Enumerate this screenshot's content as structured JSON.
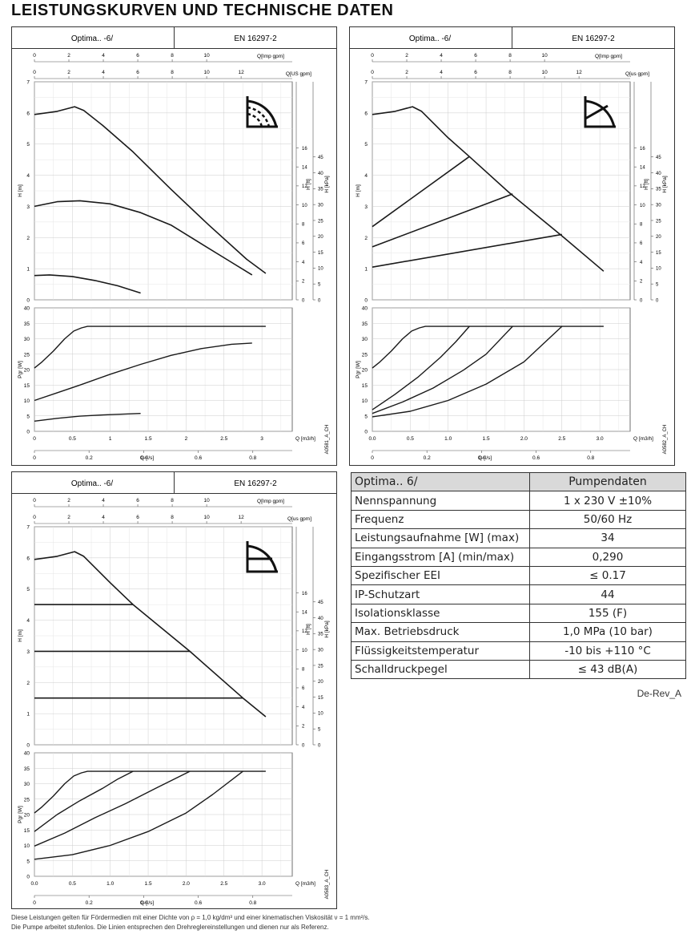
{
  "page_title": "LEISTUNGSKURVEN UND TECHNISCHE DATEN",
  "colors": {
    "curve": "#1a1a1a",
    "grid": "#cccccc",
    "frame": "#333333",
    "table_header_bg": "#d9d9d9"
  },
  "chart_data": [
    {
      "type": "line",
      "pump_name": "Optima.. -6/",
      "standard": "EN 16297-2",
      "drawing_id": "A0581_A_CH",
      "icon": "constant-curve-mode-icon",
      "upper_plot": {
        "top_axis_labels": [
          "Q[Imp gpm]",
          "Q[US gpm]"
        ],
        "ylabel": "H [m]",
        "right_ylabels": [
          "H [ft]",
          "H [kPa]"
        ],
        "ylim": [
          0,
          7
        ],
        "yticks": [
          0,
          1,
          2,
          3,
          4,
          5,
          6,
          7
        ],
        "series": [
          {
            "x": [
              0,
              0.3,
              0.53,
              0.65,
              0.9,
              1.3,
              1.8,
              2.3,
              2.8,
              3.05
            ],
            "y": [
              5.95,
              6.05,
              6.2,
              6.08,
              5.6,
              4.75,
              3.55,
              2.4,
              1.3,
              0.85
            ]
          },
          {
            "x": [
              0,
              0.3,
              0.6,
              1.0,
              1.4,
              1.8,
              2.2,
              2.5,
              2.87
            ],
            "y": [
              3.0,
              3.15,
              3.18,
              3.08,
              2.8,
              2.4,
              1.8,
              1.35,
              0.8
            ]
          },
          {
            "x": [
              0,
              0.2,
              0.5,
              0.8,
              1.1,
              1.4
            ],
            "y": [
              0.78,
              0.8,
              0.75,
              0.62,
              0.45,
              0.22
            ]
          }
        ]
      },
      "lower_plot": {
        "ylabel": "Pgr [W]",
        "xlabel": "Q [m3/h]",
        "xlabel2": "Q [l/s]",
        "ylim": [
          0,
          40
        ],
        "yticks": [
          0,
          5,
          10,
          15,
          20,
          25,
          30,
          35,
          40
        ],
        "xlim": [
          0,
          3.4
        ],
        "xticks": [
          0,
          0.5,
          1,
          1.5,
          2,
          2.5,
          3
        ],
        "xticks_labels": [
          "0",
          "0.5",
          "1",
          "1.5",
          "2",
          "2.5",
          "3"
        ],
        "ls_ticks": [
          "0",
          "0.2",
          "0.4",
          "0.6",
          "0.8"
        ],
        "series": [
          {
            "x": [
              0,
              0.1,
              0.25,
              0.4,
              0.52,
              0.62,
              0.7,
              3.05
            ],
            "y": [
              20.5,
              22.5,
              26,
              30,
              32.5,
              33.5,
              34,
              34
            ]
          },
          {
            "x": [
              0,
              0.3,
              0.6,
              1.0,
              1.4,
              1.8,
              2.2,
              2.6,
              2.87
            ],
            "y": [
              10,
              12.5,
              15,
              18.5,
              21.7,
              24.6,
              26.8,
              28.2,
              28.6
            ]
          },
          {
            "x": [
              0,
              0.3,
              0.6,
              0.9,
              1.2,
              1.4
            ],
            "y": [
              3.3,
              4.2,
              4.9,
              5.3,
              5.6,
              5.8
            ]
          }
        ]
      }
    },
    {
      "type": "line",
      "pump_name": "Optima.. -6/",
      "standard": "EN 16297-2",
      "drawing_id": "A0582_A_CH",
      "icon": "proportional-pressure-mode-icon",
      "upper_plot": {
        "top_axis_labels": [
          "Q[Imp gpm]",
          "Q[us gpm]"
        ],
        "ylabel": "H [m]",
        "right_ylabels": [
          "H [ft]",
          "H [kPa]"
        ],
        "ylim": [
          0,
          7
        ],
        "yticks": [
          0,
          1,
          2,
          3,
          4,
          5,
          6,
          7
        ],
        "series": [
          {
            "x": [
              0,
              0.3,
              0.53,
              0.65,
              1.0,
              1.28,
              1.8,
              2.5,
              3.05
            ],
            "y": [
              5.95,
              6.05,
              6.2,
              6.05,
              5.2,
              4.6,
              3.45,
              2.05,
              0.92
            ]
          },
          {
            "x": [
              0,
              1.28
            ],
            "y": [
              2.35,
              4.6
            ]
          },
          {
            "x": [
              0,
              1.85
            ],
            "y": [
              1.7,
              3.4
            ]
          },
          {
            "x": [
              0,
              2.5
            ],
            "y": [
              1.05,
              2.1
            ]
          }
        ]
      },
      "lower_plot": {
        "ylabel": "Pgr [W]",
        "xlabel": "Q [m3/h]",
        "xlabel2": "Q [l/s]",
        "ylim": [
          0,
          40
        ],
        "yticks": [
          0,
          5,
          10,
          15,
          20,
          25,
          30,
          35,
          40
        ],
        "xlim": [
          0,
          3.4
        ],
        "xticks": [
          0,
          0.5,
          1,
          1.5,
          2,
          2.5,
          3
        ],
        "xticks_labels": [
          "0.0",
          "0.5",
          "1.0",
          "1.5",
          "2.0",
          "2.5",
          "3.0"
        ],
        "ls_ticks": [
          "0",
          "0.2",
          "0.4",
          "0.6",
          "0.8"
        ],
        "series": [
          {
            "x": [
              0,
              0.1,
              0.25,
              0.4,
              0.52,
              0.62,
              0.7,
              3.05
            ],
            "y": [
              20.5,
              22.5,
              26,
              30,
              32.5,
              33.5,
              34,
              34
            ]
          },
          {
            "x": [
              0,
              0.3,
              0.6,
              0.9,
              1.1,
              1.28
            ],
            "y": [
              7,
              12,
              17.5,
              24,
              29,
              34
            ]
          },
          {
            "x": [
              0,
              0.4,
              0.8,
              1.2,
              1.5,
              1.85
            ],
            "y": [
              5.8,
              9.5,
              14,
              19.8,
              25,
              34
            ]
          },
          {
            "x": [
              0,
              0.5,
              1.0,
              1.5,
              2.0,
              2.5
            ],
            "y": [
              4.7,
              6.5,
              10,
              15.3,
              22.5,
              34
            ]
          }
        ]
      }
    },
    {
      "type": "line",
      "pump_name": "Optima.. -6/",
      "standard": "EN 16297-2",
      "drawing_id": "A0583_A_CH",
      "icon": "constant-pressure-mode-icon",
      "upper_plot": {
        "top_axis_labels": [
          "Q[Imp gpm]",
          "Q[us gpm]"
        ],
        "ylabel": "H [m]",
        "right_ylabels": [
          "H [ft]",
          "H [kPa]"
        ],
        "ylim": [
          0,
          7
        ],
        "yticks": [
          0,
          1,
          2,
          3,
          4,
          5,
          6,
          7
        ],
        "series": [
          {
            "x": [
              0,
              0.3,
              0.53,
              0.65,
              1.0,
              1.3,
              2.05,
              2.75,
              3.05
            ],
            "y": [
              5.95,
              6.05,
              6.2,
              6.05,
              5.2,
              4.5,
              3.0,
              1.5,
              0.9
            ]
          },
          {
            "x": [
              0,
              1.3
            ],
            "y": [
              4.5,
              4.5
            ]
          },
          {
            "x": [
              0,
              2.05
            ],
            "y": [
              3.0,
              3.0
            ]
          },
          {
            "x": [
              0,
              2.75
            ],
            "y": [
              1.5,
              1.5
            ]
          }
        ]
      },
      "lower_plot": {
        "ylabel": "Pgr [W]",
        "xlabel": "Q [m3/h]",
        "xlabel2": "Q [l/s]",
        "ylim": [
          0,
          40
        ],
        "yticks": [
          0,
          5,
          10,
          15,
          20,
          25,
          30,
          35,
          40
        ],
        "xlim": [
          0,
          3.4
        ],
        "xticks": [
          0,
          0.5,
          1,
          1.5,
          2,
          2.5,
          3
        ],
        "xticks_labels": [
          "0.0",
          "0.5",
          "1.0",
          "1.5",
          "2.0",
          "2.5",
          "3.0"
        ],
        "ls_ticks": [
          "0",
          "0.2",
          "0.4",
          "0.6",
          "0.8"
        ],
        "series": [
          {
            "x": [
              0,
              0.1,
              0.25,
              0.4,
              0.52,
              0.62,
              0.7,
              3.05
            ],
            "y": [
              20.5,
              22.5,
              26,
              30,
              32.5,
              33.5,
              34,
              34
            ]
          },
          {
            "x": [
              0,
              0.3,
              0.6,
              0.9,
              1.1,
              1.3
            ],
            "y": [
              14.5,
              20,
              24.5,
              28.5,
              31.5,
              34
            ]
          },
          {
            "x": [
              0,
              0.4,
              0.8,
              1.2,
              1.6,
              2.05
            ],
            "y": [
              9.8,
              14,
              19,
              23.5,
              28.5,
              34
            ]
          },
          {
            "x": [
              0,
              0.5,
              1.0,
              1.5,
              2.0,
              2.35,
              2.75
            ],
            "y": [
              5.5,
              7,
              10,
              14.5,
              20.5,
              26.5,
              34
            ]
          }
        ]
      }
    }
  ],
  "axes_common": {
    "imp_ticks": [
      "0",
      "2",
      "4",
      "6",
      "8",
      "10"
    ],
    "us_ticks": [
      "0",
      "2",
      "4",
      "6",
      "8",
      "10",
      "12"
    ],
    "ft_ticks": [
      "0",
      "2",
      "4",
      "6",
      "8",
      "10",
      "12",
      "14",
      "16"
    ],
    "kpa_ticks": [
      "0",
      "5",
      "10",
      "15",
      "20",
      "25",
      "30",
      "35",
      "40",
      "45"
    ]
  },
  "spec_table": {
    "header": [
      "Optima.. 6/",
      "Pumpendaten"
    ],
    "rows": [
      [
        "Nennspannung",
        "1 x 230 V ±10%"
      ],
      [
        "Frequenz",
        "50/60 Hz"
      ],
      [
        "Leistungsaufnahme [W] (max)",
        "34"
      ],
      [
        "Eingangsstrom [A] (min/max)",
        "0,290"
      ],
      [
        "Spezifischer EEI",
        "≤ 0.17"
      ],
      [
        "IP-Schutzart",
        "44"
      ],
      [
        "Isolationsklasse",
        "155 (F)"
      ],
      [
        "Max. Betriebsdruck",
        "1,0 MPa (10 bar)"
      ],
      [
        "Flüssigkeitstemperatur",
        "-10 bis +110 °C"
      ],
      [
        "Schalldruckpegel",
        "≤ 43 dB(A)"
      ]
    ]
  },
  "doc_revision": "De-Rev_A",
  "footnote": [
    "Diese Leistungen gelten für Fördermedien mit einer Dichte von ρ = 1,0 kg/dm³ und einer kinematischen Viskosität ν = 1 mm²/s.",
    "Die Pumpe arbeitet stufenlos. Die Linien entsprechen den Drehreglereinstellungen und dienen nur als Referenz."
  ]
}
